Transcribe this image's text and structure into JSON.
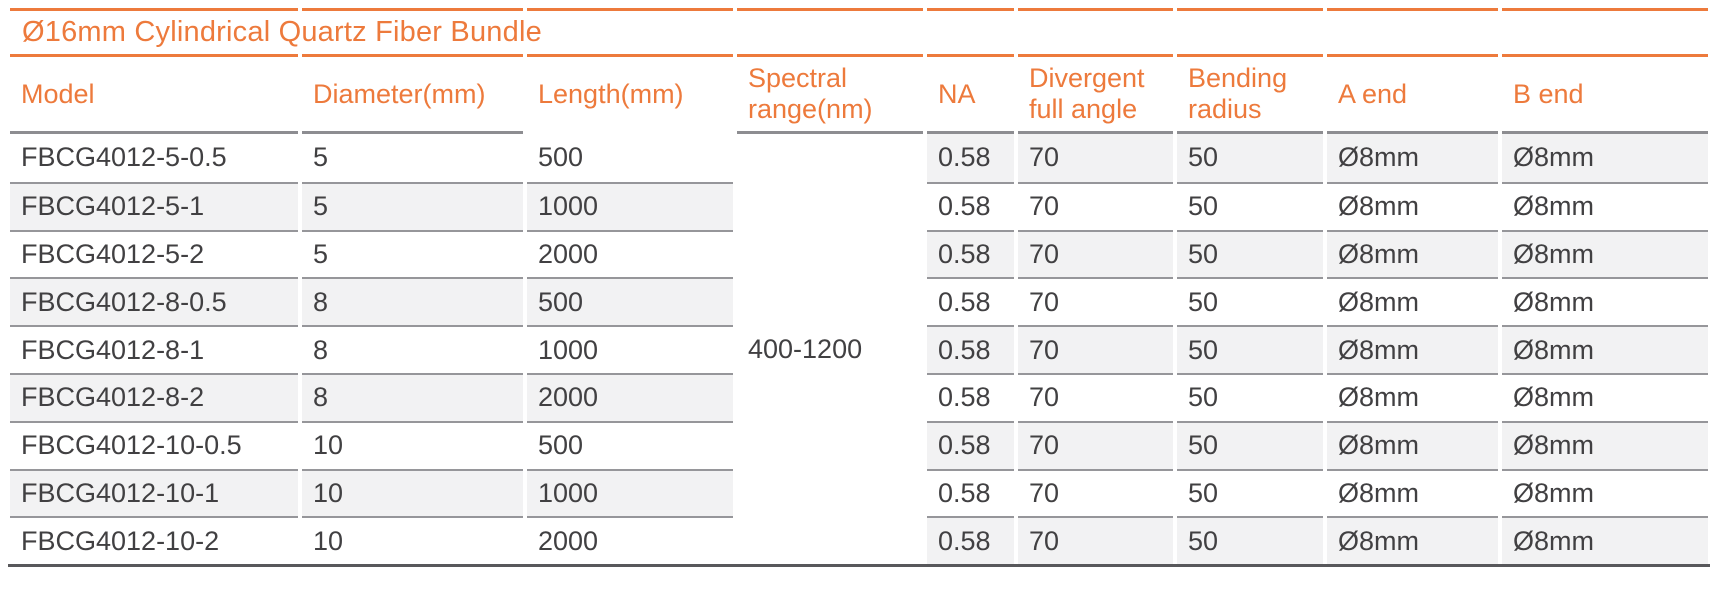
{
  "title": "Ø16mm Cylindrical Quartz Fiber Bundle",
  "colors": {
    "accent": "#ED7A3C",
    "ink": "#414042",
    "stripe": "#F2F2F3",
    "separator": "#96969A",
    "header_rule": "#8D8D91",
    "bottom_rule": "#58585B"
  },
  "table": {
    "columns": [
      {
        "key": "model",
        "label": "Model"
      },
      {
        "key": "diameter",
        "label": "Diameter(mm)"
      },
      {
        "key": "length",
        "label": "Length(mm)"
      },
      {
        "key": "spectral",
        "label": "Spectral range(nm)"
      },
      {
        "key": "na",
        "label": "NA"
      },
      {
        "key": "divergent",
        "label": "Divergent full angle"
      },
      {
        "key": "bending",
        "label": "Bending radius"
      },
      {
        "key": "a_end",
        "label": "A end"
      },
      {
        "key": "b_end",
        "label": "B end"
      }
    ],
    "spectral_range": "400-1200",
    "rows": [
      {
        "model": "FBCG4012-5-0.5",
        "diameter": "5",
        "length": "500",
        "na": "0.58",
        "divergent": "70",
        "bending": "50",
        "a_end": "Ø8mm",
        "b_end": "Ø8mm"
      },
      {
        "model": "FBCG4012-5-1",
        "diameter": "5",
        "length": "1000",
        "na": "0.58",
        "divergent": "70",
        "bending": "50",
        "a_end": "Ø8mm",
        "b_end": "Ø8mm"
      },
      {
        "model": "FBCG4012-5-2",
        "diameter": "5",
        "length": "2000",
        "na": "0.58",
        "divergent": "70",
        "bending": "50",
        "a_end": "Ø8mm",
        "b_end": "Ø8mm"
      },
      {
        "model": "FBCG4012-8-0.5",
        "diameter": "8",
        "length": "500",
        "na": "0.58",
        "divergent": "70",
        "bending": "50",
        "a_end": "Ø8mm",
        "b_end": "Ø8mm"
      },
      {
        "model": "FBCG4012-8-1",
        "diameter": "8",
        "length": "1000",
        "na": "0.58",
        "divergent": "70",
        "bending": "50",
        "a_end": "Ø8mm",
        "b_end": "Ø8mm"
      },
      {
        "model": "FBCG4012-8-2",
        "diameter": "8",
        "length": "2000",
        "na": "0.58",
        "divergent": "70",
        "bending": "50",
        "a_end": "Ø8mm",
        "b_end": "Ø8mm"
      },
      {
        "model": "FBCG4012-10-0.5",
        "diameter": "10",
        "length": "500",
        "na": "0.58",
        "divergent": "70",
        "bending": "50",
        "a_end": "Ø8mm",
        "b_end": "Ø8mm"
      },
      {
        "model": "FBCG4012-10-1",
        "diameter": "10",
        "length": "1000",
        "na": "0.58",
        "divergent": "70",
        "bending": "50",
        "a_end": "Ø8mm",
        "b_end": "Ø8mm"
      },
      {
        "model": "FBCG4012-10-2",
        "diameter": "10",
        "length": "2000",
        "na": "0.58",
        "divergent": "70",
        "bending": "50",
        "a_end": "Ø8mm",
        "b_end": "Ø8mm"
      }
    ]
  }
}
